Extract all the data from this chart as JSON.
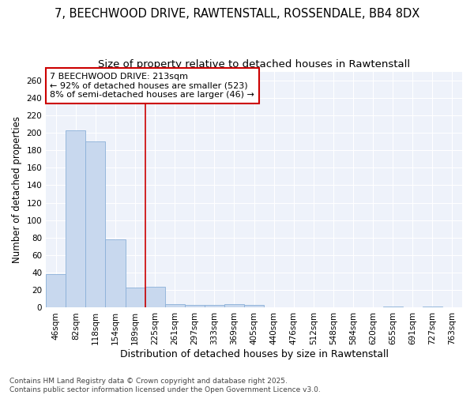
{
  "title1": "7, BEECHWOOD DRIVE, RAWTENSTALL, ROSSENDALE, BB4 8DX",
  "title2": "Size of property relative to detached houses in Rawtenstall",
  "xlabel": "Distribution of detached houses by size in Rawtenstall",
  "ylabel": "Number of detached properties",
  "categories": [
    "46sqm",
    "82sqm",
    "118sqm",
    "154sqm",
    "189sqm",
    "225sqm",
    "261sqm",
    "297sqm",
    "333sqm",
    "369sqm",
    "405sqm",
    "440sqm",
    "476sqm",
    "512sqm",
    "548sqm",
    "584sqm",
    "620sqm",
    "655sqm",
    "691sqm",
    "727sqm",
    "763sqm"
  ],
  "values": [
    38,
    203,
    190,
    78,
    23,
    24,
    4,
    3,
    3,
    4,
    3,
    0,
    0,
    0,
    0,
    0,
    0,
    1,
    0,
    1,
    0
  ],
  "bar_color": "#c8d8ee",
  "bar_edge_color": "#8ab0d8",
  "vline_x": 4.5,
  "annotation_text": "7 BEECHWOOD DRIVE: 213sqm\n← 92% of detached houses are smaller (523)\n8% of semi-detached houses are larger (46) →",
  "annotation_box_color": "#ffffff",
  "annotation_box_edge": "#cc0000",
  "vline_color": "#cc0000",
  "ylim": [
    0,
    270
  ],
  "yticks": [
    0,
    20,
    40,
    60,
    80,
    100,
    120,
    140,
    160,
    180,
    200,
    220,
    240,
    260
  ],
  "background_color": "#ffffff",
  "plot_bg_color": "#eef2fa",
  "grid_color": "#ffffff",
  "footnote": "Contains HM Land Registry data © Crown copyright and database right 2025.\nContains public sector information licensed under the Open Government Licence v3.0.",
  "title1_fontsize": 10.5,
  "title2_fontsize": 9.5,
  "xlabel_fontsize": 9,
  "ylabel_fontsize": 8.5,
  "annotation_fontsize": 8,
  "tick_fontsize": 7.5,
  "footnote_fontsize": 6.5
}
